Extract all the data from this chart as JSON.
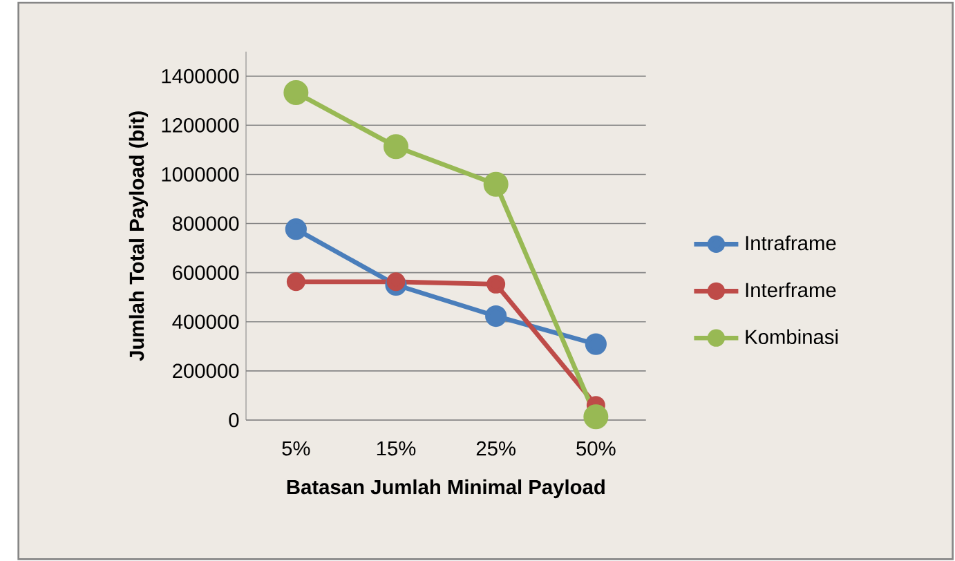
{
  "chart_data": {
    "type": "line",
    "xlabel": "Batasan Jumlah Minimal Payload",
    "ylabel": "Jumlah Total Payload (bit)",
    "categories": [
      "5%",
      "15%",
      "25%",
      "50%"
    ],
    "series": [
      {
        "name": "Intraframe",
        "color": "#4a7ebb",
        "values": [
          777000,
          550000,
          423000,
          309000
        ]
      },
      {
        "name": "Interframe",
        "color": "#be4b48",
        "values": [
          563000,
          563000,
          553000,
          60000
        ]
      },
      {
        "name": "Kombinasi",
        "color": "#98b954",
        "values": [
          1333000,
          1113000,
          960000,
          13000
        ]
      }
    ],
    "ylim": [
      0,
      1500000
    ],
    "yticks": [
      0,
      200000,
      400000,
      600000,
      800000,
      1000000,
      1200000,
      1400000
    ],
    "grid": "y",
    "legend": "right",
    "marker": "circle",
    "line_style": "solid"
  }
}
